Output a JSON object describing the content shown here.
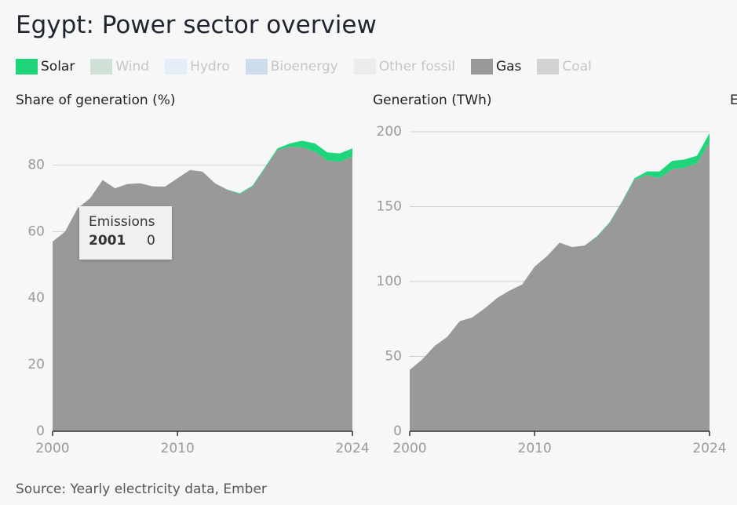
{
  "title": "Egypt: Power sector overview",
  "legend": [
    {
      "name": "Solar",
      "color": "#1ed679",
      "shown": true
    },
    {
      "name": "Wind",
      "color": "#cfe1d7",
      "shown": false
    },
    {
      "name": "Hydro",
      "color": "#e4edf8",
      "shown": false
    },
    {
      "name": "Bioenergy",
      "color": "#cddceb",
      "shown": false
    },
    {
      "name": "Other fossil",
      "color": "#ececec",
      "shown": false
    },
    {
      "name": "Gas",
      "color": "#999999",
      "shown": true
    },
    {
      "name": "Coal",
      "color": "#d3d3d3",
      "shown": false
    }
  ],
  "chart_data": [
    {
      "type": "area",
      "title": "Share of generation (%)",
      "x": [
        2000,
        2001,
        2002,
        2003,
        2004,
        2005,
        2006,
        2007,
        2008,
        2009,
        2010,
        2011,
        2012,
        2013,
        2014,
        2015,
        2016,
        2017,
        2018,
        2019,
        2020,
        2021,
        2022,
        2023,
        2024
      ],
      "series": [
        {
          "name": "Gas",
          "color": "#999999",
          "values": [
            57,
            60,
            67,
            70,
            75.5,
            73,
            74.3,
            74.5,
            73.6,
            73.5,
            76,
            78.5,
            78,
            74.5,
            72.5,
            71.3,
            73.5,
            79,
            84.5,
            85.5,
            85.3,
            84,
            81.3,
            81,
            82.5
          ]
        },
        {
          "name": "Solar",
          "color": "#1ed679",
          "values": [
            0,
            0,
            0,
            0,
            0,
            0,
            0,
            0,
            0,
            0,
            0,
            0,
            0,
            0,
            0.1,
            0.2,
            0.3,
            0.3,
            0.5,
            1,
            2,
            2.5,
            2.5,
            2.5,
            2.5
          ]
        }
      ],
      "xlim": [
        2000,
        2024
      ],
      "xticks": [
        2000,
        2010,
        2024
      ],
      "ylim": [
        0,
        90
      ],
      "yticks": [
        0,
        20,
        40,
        60,
        80
      ],
      "grid": true,
      "tooltip": {
        "title": "Emissions",
        "label": "2001",
        "value": 0
      }
    },
    {
      "type": "area",
      "title": "Generation (TWh)",
      "x": [
        2000,
        2001,
        2002,
        2003,
        2004,
        2005,
        2006,
        2007,
        2008,
        2009,
        2010,
        2011,
        2012,
        2013,
        2014,
        2015,
        2016,
        2017,
        2018,
        2019,
        2020,
        2021,
        2022,
        2023,
        2024
      ],
      "series": [
        {
          "name": "Gas",
          "color": "#999999",
          "values": [
            41,
            48,
            57,
            63,
            73.5,
            76,
            82,
            89,
            94,
            98,
            110,
            117,
            126,
            123,
            124,
            130,
            139,
            153,
            168,
            171,
            169,
            175,
            176,
            179,
            193
          ]
        },
        {
          "name": "Solar",
          "color": "#1ed679",
          "values": [
            0,
            0,
            0,
            0,
            0,
            0,
            0,
            0,
            0,
            0,
            0,
            0,
            0,
            0,
            0,
            0.3,
            0.5,
            0.5,
            1,
            2.5,
            4.5,
            5.5,
            5.5,
            5,
            6
          ]
        }
      ],
      "xlim": [
        2000,
        2024
      ],
      "xticks": [
        2000,
        2010,
        2024
      ],
      "ylim": [
        0,
        200
      ],
      "yticks": [
        0,
        50,
        100,
        150,
        200
      ],
      "grid": true
    },
    {
      "type": "area",
      "title": "E"
    }
  ],
  "source": "Source: Yearly electricity data, Ember"
}
